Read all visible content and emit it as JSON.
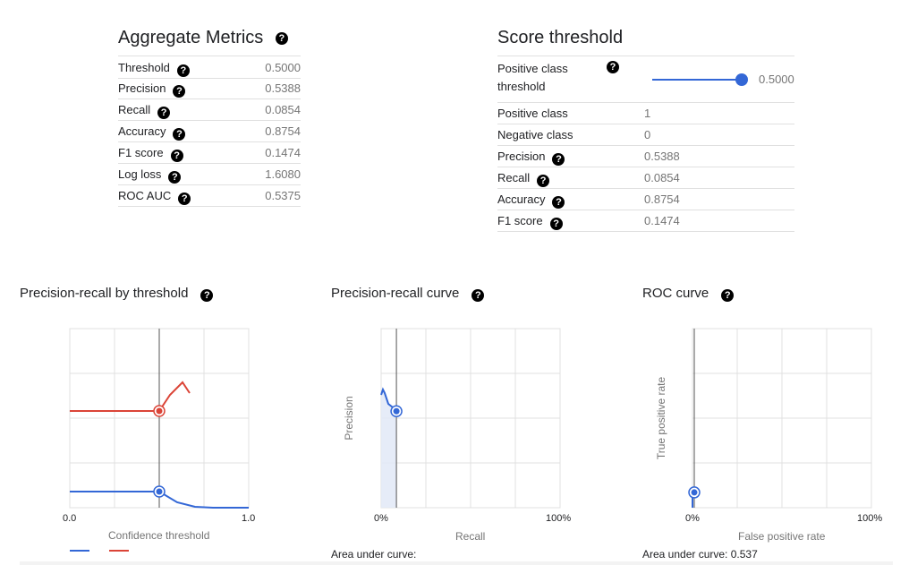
{
  "aggregate": {
    "title": "Aggregate Metrics",
    "rows": [
      {
        "label": "Threshold",
        "value": "0.5000"
      },
      {
        "label": "Precision",
        "value": "0.5388"
      },
      {
        "label": "Recall",
        "value": "0.0854"
      },
      {
        "label": "Accuracy",
        "value": "0.8754"
      },
      {
        "label": "F1 score",
        "value": "0.1474"
      },
      {
        "label": "Log loss",
        "value": "1.6080"
      },
      {
        "label": "ROC AUC",
        "value": "0.5375"
      }
    ]
  },
  "score_threshold": {
    "title": "Score threshold",
    "slider_label_line1": "Positive class",
    "slider_label_line2": "threshold",
    "slider_value": "0.5000",
    "slider_fraction": 1.0,
    "rows": [
      {
        "label": "Positive class",
        "value": "1",
        "help": false
      },
      {
        "label": "Negative class",
        "value": "0",
        "help": false
      },
      {
        "label": "Precision",
        "value": "0.5388",
        "help": true
      },
      {
        "label": "Recall",
        "value": "0.0854",
        "help": true
      },
      {
        "label": "Accuracy",
        "value": "0.8754",
        "help": true
      },
      {
        "label": "F1 score",
        "value": "0.1474",
        "help": true
      }
    ]
  },
  "help_glyph": "?",
  "colors": {
    "accent_blue": "#3367d6",
    "precision_red": "#db4437",
    "grid": "#e0e0e0"
  },
  "charts": {
    "pr_threshold": {
      "title": "Precision-recall by threshold",
      "xlabel": "Confidence threshold",
      "x_ticks": [
        "0.0",
        "1.0"
      ]
    },
    "pr_curve": {
      "title": "Precision-recall curve",
      "ylabel": "Precision",
      "xlabel": "Recall",
      "x_ticks": [
        "0%",
        "100%"
      ],
      "auc_text": "Area under curve:"
    },
    "roc": {
      "title": "ROC curve",
      "ylabel": "True positive rate",
      "xlabel": "False positive rate",
      "x_ticks": [
        "0%",
        "100%"
      ],
      "auc_text": "Area under curve: 0.537"
    }
  },
  "chart_data": [
    {
      "type": "line",
      "title": "Precision-recall by threshold",
      "xlabel": "Confidence threshold",
      "ylabel": "",
      "xlim": [
        0,
        1
      ],
      "ylim": [
        0,
        1
      ],
      "threshold": 0.5,
      "series": [
        {
          "color": "#db4437",
          "x": [
            0,
            0.5,
            0.56,
            0.63,
            0.67
          ],
          "y": [
            0.54,
            0.54,
            0.63,
            0.7,
            0.64
          ]
        },
        {
          "color": "#3367d6",
          "x": [
            0,
            0.5,
            0.6,
            0.7,
            0.8,
            1.0
          ],
          "y": [
            0.09,
            0.09,
            0.03,
            0.005,
            0,
            0
          ]
        }
      ]
    },
    {
      "type": "area",
      "title": "Precision-recall curve",
      "xlabel": "Recall",
      "ylabel": "Precision",
      "xlim": [
        0,
        1
      ],
      "ylim": [
        0,
        1
      ],
      "series": [
        {
          "color": "#3367d6",
          "x": [
            0.0,
            0.01,
            0.02,
            0.04,
            0.065,
            0.0854
          ],
          "y": [
            0.63,
            0.66,
            0.64,
            0.58,
            0.56,
            0.54
          ]
        }
      ],
      "current_point": [
        0.0854,
        0.5388
      ]
    },
    {
      "type": "line",
      "title": "ROC curve",
      "xlabel": "False positive rate",
      "ylabel": "True positive rate",
      "xlim": [
        0,
        1
      ],
      "ylim": [
        0,
        1
      ],
      "series": [
        {
          "color": "#3367d6",
          "x": [
            0,
            0.0,
            0.01
          ],
          "y": [
            0,
            0.07,
            0.09
          ]
        }
      ],
      "current_point": [
        0.01,
        0.0854
      ],
      "auc": 0.537
    }
  ]
}
